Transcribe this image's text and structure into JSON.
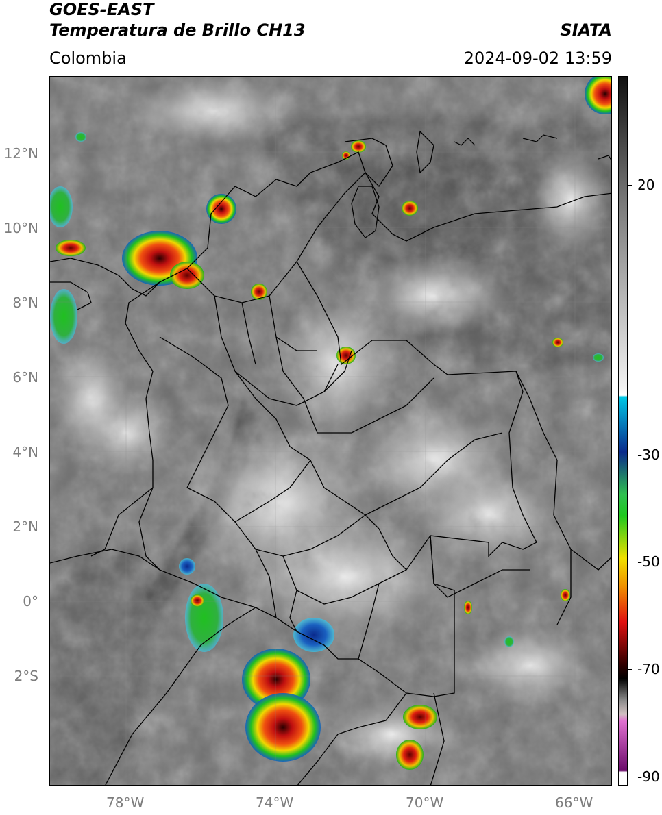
{
  "header": {
    "line1_left": "GOES-EAST",
    "line2_left": "Temperatura de Brillo CH13",
    "line2_right": "SIATA",
    "line3_left": "Colombia",
    "line3_right": "2024-09-02 13:59"
  },
  "axes": {
    "lat_labels": [
      "12°N",
      "10°N",
      "8°N",
      "6°N",
      "4°N",
      "2°N",
      "0°",
      "2°S"
    ],
    "lon_labels": [
      "78°W",
      "74°W",
      "70°W",
      "66°W"
    ]
  },
  "colorbar": {
    "labels": [
      "20",
      "-30",
      "-50",
      "-70",
      "-90"
    ],
    "palette": {
      "warm_top": "#111111",
      "grey_mid": "#7a7a7a",
      "light": "#f2f2f2",
      "cyan": "#00c8e6",
      "blue": "#0a2a8c",
      "green": "#1ec81e",
      "yellow": "#f0e000",
      "red": "#e01010",
      "dark_red": "#300000",
      "magenta": "#e070d0",
      "purple": "#6a0a6a"
    }
  }
}
